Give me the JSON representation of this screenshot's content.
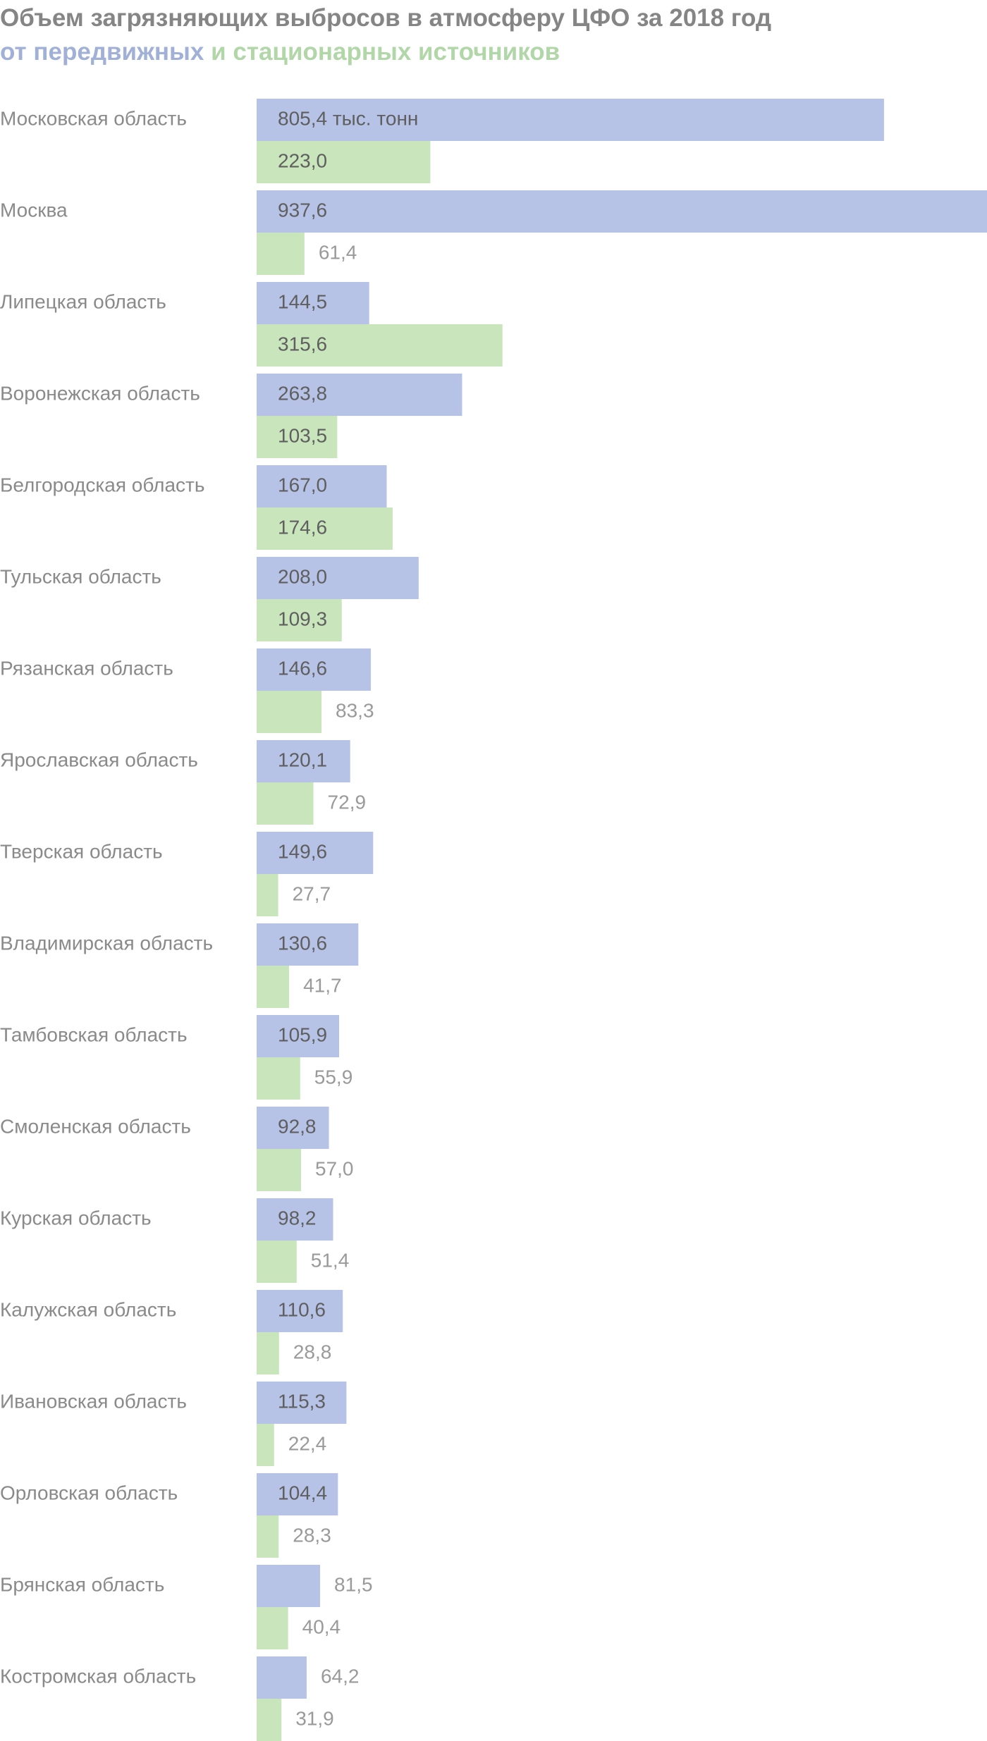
{
  "header": {
    "title": "Объем загрязняющих выбросов в атмосферу ЦФО за 2018 год",
    "subtitle_mobile": "от передвижных",
    "subtitle_stationary": " и стационарных источников"
  },
  "colors": {
    "mobile": "#b6c3e6",
    "stationary": "#c9e5bc",
    "title": "#858585",
    "subtitle_mobile": "#a1b0d6",
    "subtitle_stationary": "#b1d6a8"
  },
  "chart_data": {
    "type": "bar",
    "orientation": "horizontal",
    "title": "Объем загрязняющих выбросов в атмосферу ЦФО за 2018 год",
    "unit_note": "тыс. тонн",
    "categories": [
      "Московская область",
      "Москва",
      "Липецкая область",
      "Воронежская область",
      "Белгородская область",
      "Тульская область",
      "Рязанская область",
      "Ярославская область",
      "Тверская область",
      "Владимирская область",
      "Тамбовская область",
      "Смоленская область",
      "Курская область",
      "Калужская область",
      "Ивановская область",
      "Орловская область",
      "Брянская область",
      "Костромская область"
    ],
    "series": [
      {
        "name": "от передвижных",
        "color": "#b6c3e6",
        "values": [
          805.4,
          937.6,
          144.5,
          263.8,
          167.0,
          208.0,
          146.6,
          120.1,
          149.6,
          130.6,
          105.9,
          92.8,
          98.2,
          110.6,
          115.3,
          104.4,
          81.5,
          64.2
        ],
        "labels": [
          "805,4 тыс. тонн",
          "937,6",
          "144,5",
          "263,8",
          "167,0",
          "208,0",
          "146,6",
          "120,1",
          "149,6",
          "130,6",
          "105,9",
          "92,8",
          "98,2",
          "110,6",
          "115,3",
          "104,4",
          "81,5",
          "64,2"
        ]
      },
      {
        "name": "стационарных источников",
        "color": "#c9e5bc",
        "values": [
          223.0,
          61.4,
          315.6,
          103.5,
          174.6,
          109.3,
          83.3,
          72.9,
          27.7,
          41.7,
          55.9,
          57.0,
          51.4,
          28.8,
          22.4,
          28.3,
          40.4,
          31.9
        ],
        "labels": [
          "223,0",
          "61,4",
          "315,6",
          "103,5",
          "174,6",
          "109,3",
          "83,3",
          "72,9",
          "27,7",
          "41,7",
          "55,9",
          "57,0",
          "51,4",
          "28,8",
          "22,4",
          "28,3",
          "40,4",
          "31,9"
        ]
      }
    ],
    "xlim": [
      0,
      937.6
    ],
    "grid": false,
    "legend": "subtitle"
  }
}
